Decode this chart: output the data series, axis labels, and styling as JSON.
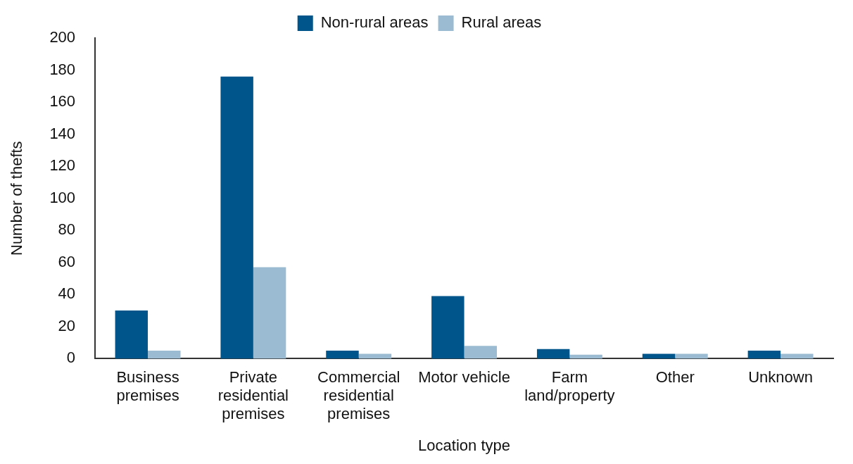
{
  "chart_data": {
    "type": "bar",
    "xlabel": "Location type",
    "ylabel": "Number of thefts",
    "categories": [
      "Business premises",
      "Private residential premises",
      "Commercial residential premises",
      "Motor vehicle",
      "Farm land/property",
      "Other",
      "Unknown"
    ],
    "series": [
      {
        "name": "Non-rural areas",
        "color": "#00558a",
        "values": [
          30,
          176,
          5,
          39,
          6,
          3,
          5
        ]
      },
      {
        "name": "Rural areas",
        "color": "#9abbd1",
        "values": [
          5,
          57,
          3,
          8,
          2.5,
          3,
          3
        ]
      }
    ],
    "ylim": [
      0,
      200
    ],
    "yticks": [
      0,
      20,
      40,
      60,
      80,
      100,
      120,
      140,
      160,
      180,
      200
    ],
    "grid": false,
    "legend": "top"
  }
}
